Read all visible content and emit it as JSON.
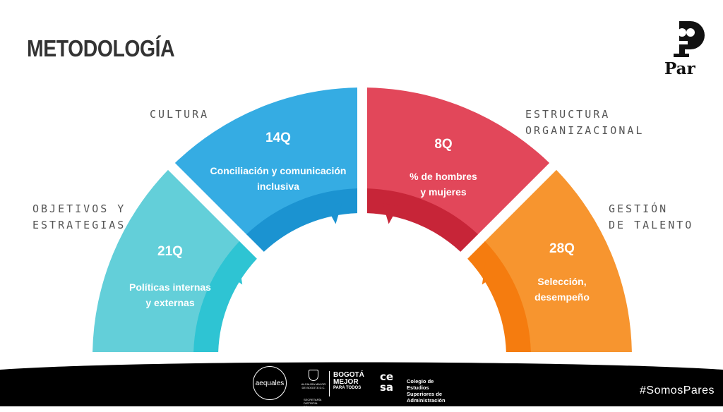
{
  "title": "METODOLOGÍA",
  "categories": {
    "cultura": "CULTURA",
    "objetivos": "OBJETIVOS Y\nESTRATEGIAS",
    "estructura": "ESTRUCTURA\nORGANIZACIONAL",
    "gestion": "GESTIÓN\nDE TALENTO"
  },
  "segments": [
    {
      "id": "objetivos",
      "count": "21Q",
      "desc": "Políticas internas y externas",
      "color": "#63cfd9",
      "inner_color": "#2ec4d3"
    },
    {
      "id": "cultura",
      "count": "14Q",
      "desc": "Conciliación y comunicación inclusiva",
      "color": "#35ace3",
      "inner_color": "#1b93d1"
    },
    {
      "id": "estructura",
      "count": "8Q",
      "desc": "% de hombres y mujeres",
      "color": "#e2475a",
      "inner_color": "#c72538"
    },
    {
      "id": "gestion",
      "count": "28Q",
      "desc": "Selección, desempeño",
      "color": "#f7952f",
      "inner_color": "#f57c0f"
    }
  ],
  "logo": {
    "name": "Par"
  },
  "footer": {
    "hashtag": "#SomosPares",
    "aequales": "aequales",
    "alcaldia": "ALCALDÍA MAYOR DE BOGOTÁ D.C.",
    "bogota_line1": "BOGOTÁ",
    "bogota_line2": "MEJOR",
    "bogota_line3": "PARA TODOS",
    "secretaria": "SECRETARÍA DISTRITAL DE LA MUJER",
    "cesa_mark": "ce sa",
    "cesa_text1": "Colegio de Estudios",
    "cesa_text2": "Superiores de Administración"
  }
}
